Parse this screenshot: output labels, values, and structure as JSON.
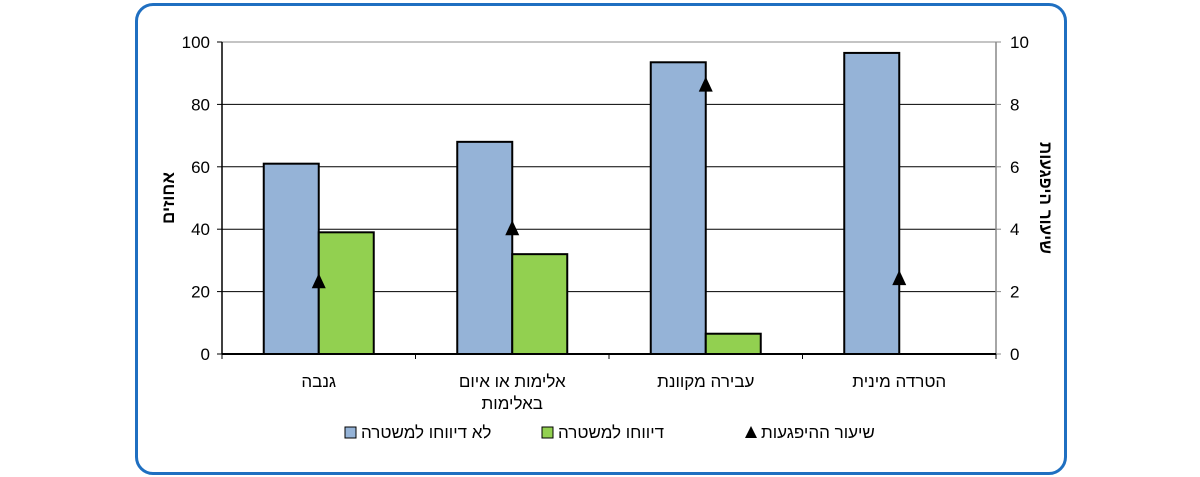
{
  "chart_data": {
    "type": "bar",
    "categories": [
      "גנבה",
      "אלימות או איום באלימות",
      "עבירה מקוונת",
      "הטרדה מינית"
    ],
    "category_lines": [
      [
        "גנבה"
      ],
      [
        "אלימות או איום",
        "באלימות"
      ],
      [
        "עבירה מקוונת"
      ],
      [
        "הטרדה מינית"
      ]
    ],
    "series": [
      {
        "name": "לא דיווחו למשטרה",
        "type": "bar",
        "axis": "left",
        "color": "#95b3d7",
        "values": [
          61,
          68,
          93.5,
          96.5
        ]
      },
      {
        "name": "דיווחו למשטרה",
        "type": "bar",
        "axis": "left",
        "color": "#92d050",
        "values": [
          39,
          32,
          6.5,
          null
        ]
      },
      {
        "name": "שיעור ההיפגעות",
        "type": "marker",
        "axis": "right",
        "color": "#000000",
        "values": [
          2.3,
          4.0,
          8.6,
          2.4
        ]
      }
    ],
    "ylabel": "אחוזים",
    "y2label": "שיעור היפגעות",
    "ylim": [
      0,
      100
    ],
    "y2lim": [
      0,
      10
    ],
    "yticks": [
      0,
      20,
      40,
      60,
      80,
      100
    ],
    "y2ticks": [
      0,
      2,
      4,
      6,
      8,
      10
    ],
    "grid": true,
    "legend_position": "bottom"
  }
}
